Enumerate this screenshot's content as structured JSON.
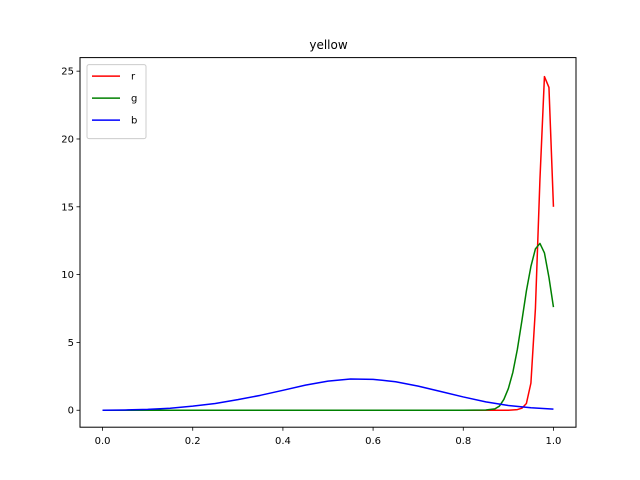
{
  "chart_data": {
    "type": "line",
    "title": "yellow",
    "xlabel": "",
    "ylabel": "",
    "xlim": [
      -0.05,
      1.05
    ],
    "ylim": [
      -1.25,
      26.0
    ],
    "xticks": [
      0.0,
      0.2,
      0.4,
      0.6,
      0.8,
      1.0
    ],
    "xtick_labels": [
      "0.0",
      "0.2",
      "0.4",
      "0.6",
      "0.8",
      "1.0"
    ],
    "yticks": [
      0,
      5,
      10,
      15,
      20,
      25
    ],
    "ytick_labels": [
      "0",
      "5",
      "10",
      "15",
      "20",
      "25"
    ],
    "grid": false,
    "legend_position": "top-left",
    "series": [
      {
        "name": "r",
        "color": "#ff0000",
        "x": [
          0.0,
          0.1,
          0.2,
          0.3,
          0.4,
          0.5,
          0.6,
          0.7,
          0.8,
          0.85,
          0.9,
          0.92,
          0.93,
          0.94,
          0.95,
          0.96,
          0.97,
          0.98,
          0.99,
          1.0
        ],
        "y": [
          0,
          0,
          0,
          0,
          0,
          0,
          0,
          0,
          0,
          0,
          0,
          0.05,
          0.15,
          0.5,
          2.0,
          7.5,
          17.0,
          24.6,
          23.8,
          15.0
        ]
      },
      {
        "name": "g",
        "color": "#008000",
        "x": [
          0.0,
          0.1,
          0.2,
          0.3,
          0.4,
          0.5,
          0.6,
          0.7,
          0.8,
          0.85,
          0.87,
          0.88,
          0.89,
          0.9,
          0.91,
          0.92,
          0.93,
          0.94,
          0.95,
          0.96,
          0.97,
          0.98,
          0.99,
          1.0
        ],
        "y": [
          0,
          0,
          0,
          0,
          0,
          0,
          0,
          0,
          0,
          0.02,
          0.1,
          0.3,
          0.8,
          1.6,
          2.8,
          4.5,
          6.6,
          8.8,
          10.6,
          11.9,
          12.3,
          11.6,
          9.8,
          7.6
        ]
      },
      {
        "name": "b",
        "color": "#0000ff",
        "x": [
          0.0,
          0.05,
          0.1,
          0.15,
          0.2,
          0.25,
          0.3,
          0.35,
          0.4,
          0.45,
          0.5,
          0.55,
          0.6,
          0.65,
          0.7,
          0.75,
          0.8,
          0.85,
          0.9,
          0.95,
          1.0
        ],
        "y": [
          0.0,
          0.02,
          0.06,
          0.15,
          0.3,
          0.5,
          0.78,
          1.1,
          1.47,
          1.85,
          2.15,
          2.3,
          2.28,
          2.1,
          1.78,
          1.38,
          0.98,
          0.62,
          0.35,
          0.18,
          0.08
        ]
      }
    ]
  }
}
